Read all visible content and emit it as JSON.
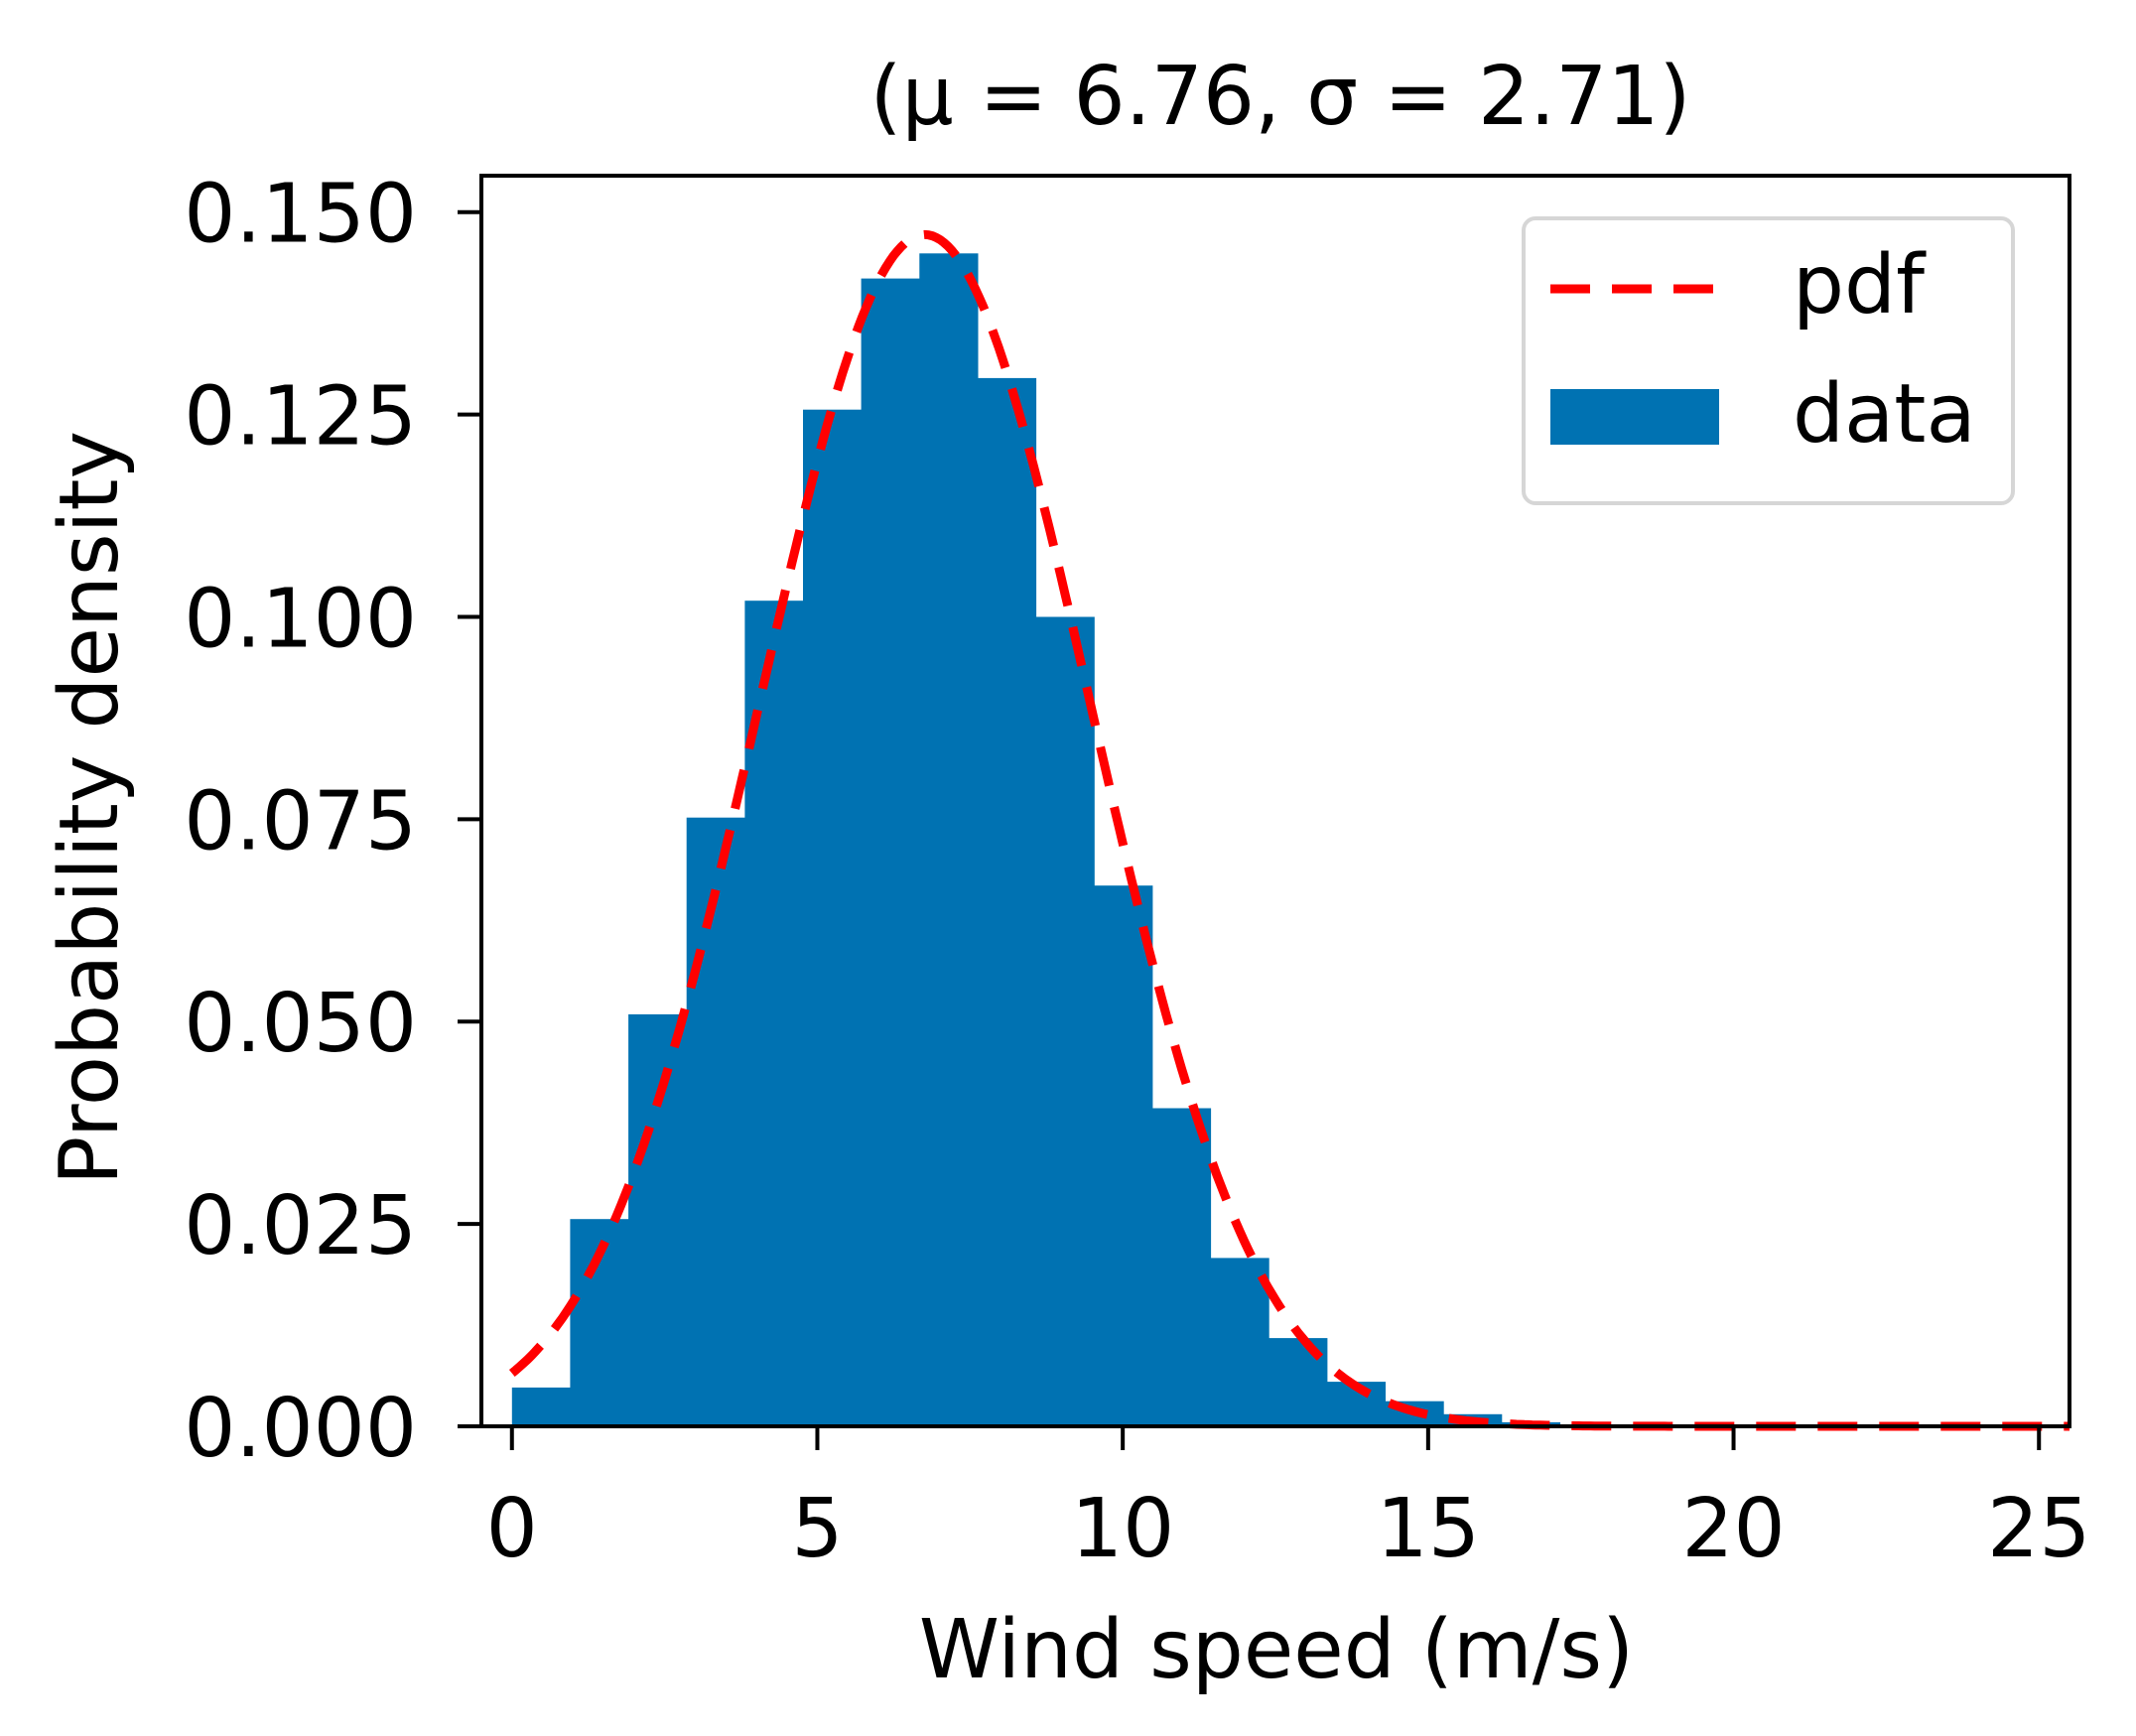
{
  "chart_data": {
    "type": "bar",
    "subtype": "histogram_with_pdf_overlay",
    "title": "(μ = 6.76, σ = 2.71)",
    "xlabel": "Wind speed (m/s)",
    "ylabel": "Probability density",
    "xlim": [
      -0.5,
      25.5
    ],
    "ylim": [
      0.0,
      0.1545
    ],
    "xticks": [
      0,
      5,
      10,
      15,
      20,
      25
    ],
    "xtick_labels": [
      "0",
      "5",
      "10",
      "15",
      "20",
      "25"
    ],
    "yticks": [
      0.0,
      0.025,
      0.05,
      0.075,
      0.1,
      0.125,
      0.15
    ],
    "ytick_labels": [
      "0.000",
      "0.025",
      "0.050",
      "0.075",
      "0.100",
      "0.125",
      "0.150"
    ],
    "grid": false,
    "legend_position": "upper right",
    "histogram": {
      "name": "data",
      "color": "#0072B2",
      "bin_start": 0.0,
      "bin_width": 0.953,
      "values": [
        0.0048,
        0.0256,
        0.0509,
        0.0752,
        0.102,
        0.1256,
        0.1418,
        0.1449,
        0.1295,
        0.1,
        0.0668,
        0.0393,
        0.0208,
        0.0109,
        0.0055,
        0.0031,
        0.0015,
        0.0005
      ]
    },
    "pdf": {
      "name": "pdf",
      "distribution": "normal",
      "mu": 6.76,
      "sigma": 2.71,
      "x_range": [
        0,
        25.5
      ],
      "color": "#FF0000",
      "linestyle": "dashed"
    },
    "series": [
      {
        "name": "pdf",
        "type": "line",
        "style": "dashed",
        "color": "#FF0000"
      },
      {
        "name": "data",
        "type": "bar",
        "color": "#0072B2"
      }
    ]
  },
  "legend": {
    "items": [
      {
        "label": "pdf",
        "kind": "dashed-line",
        "color": "#FF0000"
      },
      {
        "label": "data",
        "kind": "patch",
        "color": "#0072B2"
      }
    ]
  }
}
